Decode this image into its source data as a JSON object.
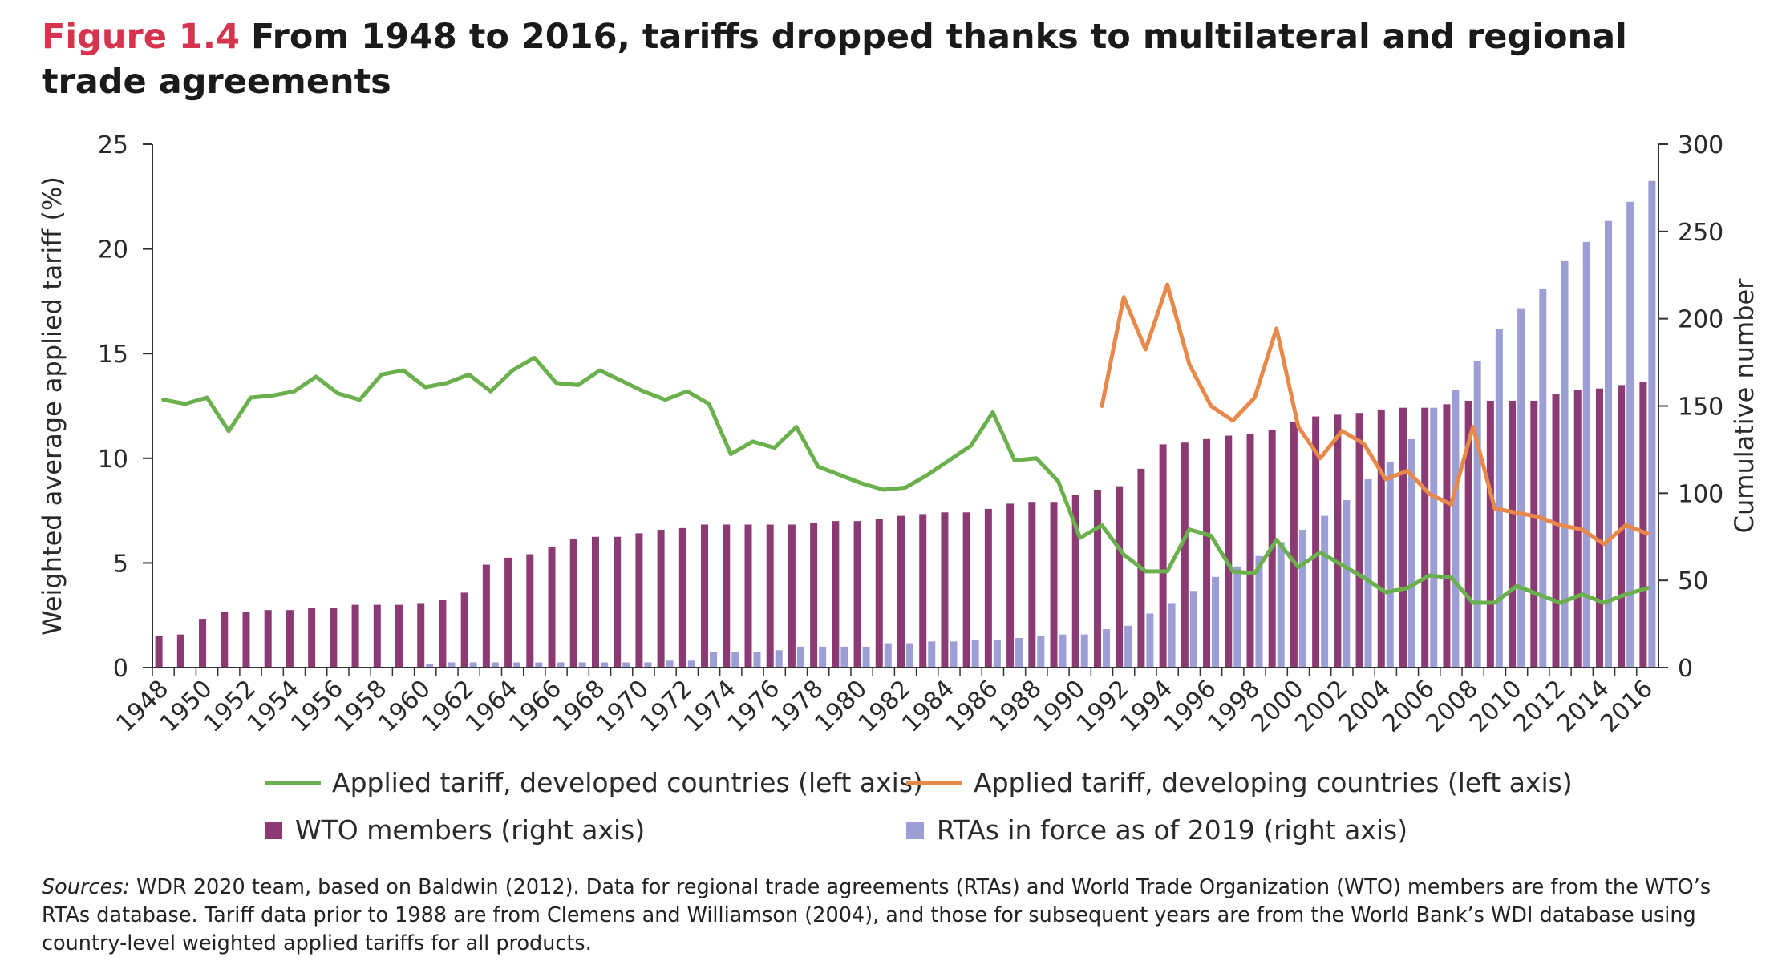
{
  "title": {
    "figure_label": "Figure 1.4",
    "text": "From 1948 to 2016, tariffs dropped thanks to multilateral and regional trade agreements"
  },
  "sources": {
    "label": "Sources:",
    "text": "WDR 2020 team, based on Baldwin (2012). Data for regional trade agreements (RTAs) and World Trade Organization (WTO) members are from the WTO’s RTAs database. Tariff data prior to 1988 are from Clemens and Williamson (2004), and those for subsequent years are from the World Bank’s WDI database using country-level weighted applied tariffs for all products."
  },
  "colors": {
    "developed": "#6ab04c",
    "developing": "#e8894a",
    "wto": "#8c3a73",
    "rta": "#9b9fd6",
    "figure_label": "#d6334f"
  },
  "chart_data": {
    "type": "bar",
    "ylabel_left": "Weighted average applied tariff (%)",
    "ylabel_right": "Cumulative number",
    "ylim_left": [
      0,
      25
    ],
    "ylim_right": [
      0,
      300
    ],
    "yticks_left": [
      "0",
      "5",
      "10",
      "15",
      "20",
      "25"
    ],
    "yticks_right": [
      "0",
      "50",
      "100",
      "150",
      "200",
      "250",
      "300"
    ],
    "x_tick_labels": [
      "1948",
      "1950",
      "1952",
      "1954",
      "1956",
      "1958",
      "1960",
      "1962",
      "1964",
      "1966",
      "1968",
      "1970",
      "1972",
      "1974",
      "1976",
      "1978",
      "1980",
      "1982",
      "1984",
      "1986",
      "1988",
      "1990",
      "1992",
      "1994",
      "1996",
      "1998",
      "2000",
      "2002",
      "2004",
      "2006",
      "2008",
      "2010",
      "2012",
      "2014",
      "2016"
    ],
    "years": [
      1948,
      1949,
      1950,
      1951,
      1952,
      1953,
      1954,
      1955,
      1956,
      1957,
      1958,
      1959,
      1960,
      1961,
      1962,
      1963,
      1964,
      1965,
      1966,
      1967,
      1968,
      1969,
      1970,
      1971,
      1972,
      1973,
      1974,
      1975,
      1976,
      1977,
      1978,
      1979,
      1980,
      1981,
      1982,
      1983,
      1984,
      1985,
      1986,
      1987,
      1988,
      1989,
      1990,
      1991,
      1992,
      1993,
      1994,
      1995,
      1996,
      1997,
      1998,
      1999,
      2000,
      2001,
      2002,
      2003,
      2004,
      2005,
      2006,
      2007,
      2008,
      2009,
      2010,
      2011,
      2012,
      2013,
      2014,
      2015,
      2016
    ],
    "legend_position": "bottom",
    "series": [
      {
        "name": "WTO members (right axis)",
        "type": "bar",
        "axis": "right",
        "values": [
          18,
          19,
          28,
          32,
          32,
          33,
          33,
          34,
          34,
          36,
          36,
          36,
          37,
          39,
          43,
          59,
          63,
          65,
          69,
          74,
          75,
          75,
          77,
          79,
          80,
          82,
          82,
          82,
          82,
          82,
          83,
          84,
          84,
          85,
          87,
          88,
          89,
          89,
          91,
          94,
          95,
          95,
          99,
          102,
          104,
          114,
          128,
          129,
          131,
          133,
          134,
          136,
          141,
          144,
          145,
          146,
          148,
          149,
          149,
          151,
          153,
          153,
          153,
          153,
          157,
          159,
          160,
          162,
          164
        ]
      },
      {
        "name": "RTAs in force as of 2019 (right axis)",
        "type": "bar",
        "axis": "right",
        "values": [
          0,
          0,
          0,
          0,
          0,
          0,
          0,
          0,
          0,
          0,
          0,
          0,
          2,
          3,
          3,
          3,
          3,
          3,
          3,
          3,
          3,
          3,
          3,
          4,
          4,
          9,
          9,
          9,
          10,
          12,
          12,
          12,
          12,
          14,
          14,
          15,
          15,
          16,
          16,
          17,
          18,
          19,
          19,
          22,
          24,
          31,
          37,
          44,
          52,
          58,
          64,
          72,
          79,
          87,
          96,
          108,
          118,
          131,
          149,
          159,
          176,
          194,
          206,
          217,
          233,
          244,
          256,
          267,
          279
        ]
      },
      {
        "name": "Applied tariff, developed countries (left axis)",
        "type": "line",
        "axis": "left",
        "values": [
          12.8,
          12.6,
          12.9,
          11.3,
          12.9,
          13.0,
          13.2,
          13.9,
          13.1,
          12.8,
          14.0,
          14.2,
          13.4,
          13.6,
          14.0,
          13.2,
          14.2,
          14.8,
          13.6,
          13.5,
          14.2,
          13.7,
          13.2,
          12.8,
          13.2,
          12.6,
          10.2,
          10.8,
          10.5,
          11.5,
          9.6,
          9.2,
          8.8,
          8.5,
          8.6,
          9.2,
          9.9,
          10.6,
          12.2,
          9.9,
          10.0,
          8.9,
          6.2,
          6.8,
          5.4,
          4.6,
          4.6,
          6.6,
          6.3,
          4.6,
          4.5,
          6.1,
          4.8,
          5.5,
          4.9,
          4.3,
          3.6,
          3.8,
          4.4,
          4.3,
          3.1,
          3.1,
          3.9,
          3.5,
          3.1,
          3.5,
          3.1,
          3.5,
          3.8
        ]
      },
      {
        "name": "Applied tariff, developing countries (left axis)",
        "type": "line",
        "axis": "left",
        "start_year": 1991,
        "values": [
          12.5,
          17.7,
          15.2,
          18.3,
          14.5,
          12.5,
          11.8,
          12.9,
          16.2,
          11.5,
          10.0,
          11.3,
          10.7,
          9.0,
          9.4,
          8.3,
          7.8,
          11.5,
          7.6,
          7.4,
          7.2,
          6.8,
          6.6,
          5.9,
          6.8,
          6.4
        ]
      }
    ]
  }
}
